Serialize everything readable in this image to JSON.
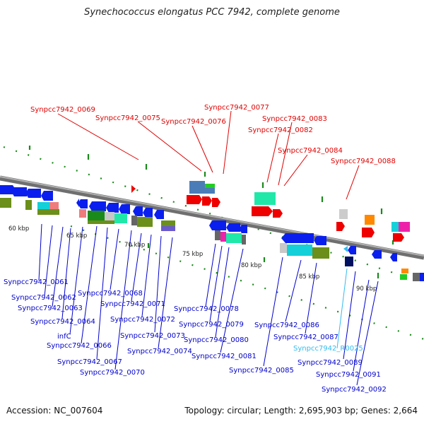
{
  "title": "Synechococcus elongatus PCC 7942, complete genome",
  "footer": {
    "accession": "Accession: NC_007604",
    "summary": "Topology: circular; Length: 2,695,903 bp; Genes: 2,664"
  },
  "ticks": [
    "60 kbp",
    "65 kbp",
    "70 kbp",
    "75 kbp",
    "80 kbp",
    "85 kbp",
    "90 kbp"
  ],
  "labels_top": [
    "Synpcc7942_0069",
    "Synpcc7942_0075",
    "Synpcc7942_0076",
    "Synpcc7942_0077",
    "Synpcc7942_0082",
    "Synpcc7942_0083",
    "Synpcc7942_0084",
    "Synpcc7942_0088"
  ],
  "labels_bottom": [
    "Synpcc7942_0061",
    "Synpcc7942_0062",
    "Synpcc7942_0063",
    "Synpcc7942_0064",
    "infC",
    "Synpcc7942_0066",
    "Synpcc7942_0067",
    "Synpcc7942_0068",
    "Synpcc7942_0070",
    "Synpcc7942_0071",
    "Synpcc7942_0072",
    "Synpcc7942_0073",
    "Synpcc7942_0074",
    "Synpcc7942_0078",
    "Synpcc7942_0079",
    "Synpcc7942_0080",
    "Synpcc7942_0081",
    "Synpcc7942_0085",
    "Synpcc7942_0086",
    "Synpcc7942_0087",
    "Synpcc7942_R0025",
    "Synpcc7942_0089",
    "Synpcc7942_0091",
    "Synpcc7942_0092"
  ],
  "colors": {
    "top_label": "#e00000",
    "bottom_label": "#0000cc",
    "rna_label": "#33bbee",
    "backbone": "#8a8a8a",
    "tick_green": "#1a8a1a"
  }
}
